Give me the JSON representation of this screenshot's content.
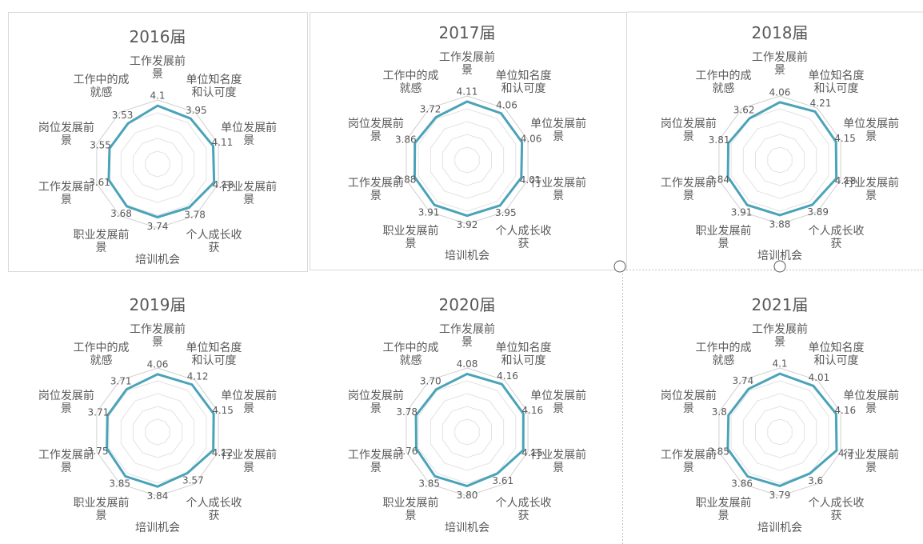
{
  "chart_data": [
    {
      "type": "radar",
      "title": "2016届",
      "rlim": [
        0,
        4.5
      ],
      "color": "#4aa3b8",
      "categories": [
        "工作发展前景",
        "单位知名度和认可度",
        "单位发展前景",
        "行业发展前景",
        "个人成长收获",
        "培训机会",
        "职业发展前景",
        "工作发展前景",
        "岗位发展前景",
        "工作中的成就感"
      ],
      "values": [
        4.1,
        3.95,
        4.11,
        4.18,
        3.78,
        3.74,
        3.68,
        3.61,
        3.55,
        3.53
      ]
    },
    {
      "type": "radar",
      "title": "2017届",
      "rlim": [
        0,
        4.5
      ],
      "color": "#4aa3b8",
      "categories": [
        "工作发展前景",
        "单位知名度和认可度",
        "单位发展前景",
        "行业发展前景",
        "个人成长收获",
        "培训机会",
        "职业发展前景",
        "工作发展前景",
        "岗位发展前景",
        "工作中的成就感"
      ],
      "values": [
        4.11,
        4.06,
        4.06,
        4.01,
        3.95,
        3.92,
        3.91,
        3.88,
        3.86,
        3.72
      ]
    },
    {
      "type": "radar",
      "title": "2018届",
      "rlim": [
        0,
        4.5
      ],
      "color": "#4aa3b8",
      "categories": [
        "工作发展前景",
        "单位知名度和认可度",
        "单位发展前景",
        "行业发展前景",
        "个人成长收获",
        "培训机会",
        "职业发展前景",
        "工作发展前景",
        "岗位发展前景",
        "工作中的成就感"
      ],
      "values": [
        4.06,
        4.21,
        4.15,
        4.18,
        3.89,
        3.88,
        3.91,
        3.84,
        3.81,
        3.62
      ]
    },
    {
      "type": "radar",
      "title": "2019届",
      "rlim": [
        0,
        4.5
      ],
      "color": "#4aa3b8",
      "categories": [
        "工作发展前景",
        "单位知名度和认可度",
        "单位发展前景",
        "行业发展前景",
        "个人成长收获",
        "培训机会",
        "职业发展前景",
        "工作发展前景",
        "岗位发展前景",
        "工作中的成就感"
      ],
      "values": [
        4.06,
        4.12,
        4.15,
        4.12,
        3.57,
        3.84,
        3.85,
        3.75,
        3.71,
        3.71
      ]
    },
    {
      "type": "radar",
      "title": "2020届",
      "rlim": [
        0,
        4.5
      ],
      "color": "#4aa3b8",
      "categories": [
        "工作发展前景",
        "单位知名度和认可度",
        "单位发展前景",
        "行业发展前景",
        "个人成长收获",
        "培训机会",
        "职业发展前景",
        "工作发展前景",
        "岗位发展前景",
        "工作中的成就感"
      ],
      "values": [
        4.08,
        4.16,
        4.16,
        4.15,
        3.61,
        3.8,
        3.85,
        3.76,
        3.78,
        3.7
      ],
      "value_labels": [
        "4.08",
        "4.16",
        "4.16",
        "4.15",
        "3.61",
        "3.80",
        "3.85",
        "3.76",
        "3.78",
        "3.70"
      ]
    },
    {
      "type": "radar",
      "title": "2021届",
      "rlim": [
        0,
        4.5
      ],
      "color": "#4aa3b8",
      "categories": [
        "工作发展前景",
        "单位知名度和认可度",
        "单位发展前景",
        "行业发展前景",
        "个人成长收获",
        "培训机会",
        "职业发展前景",
        "工作发展前景",
        "岗位发展前景",
        "工作中的成就感"
      ],
      "values": [
        4.1,
        4.01,
        4.16,
        4.2,
        3.6,
        3.79,
        3.86,
        3.85,
        3.8,
        3.74
      ]
    }
  ]
}
